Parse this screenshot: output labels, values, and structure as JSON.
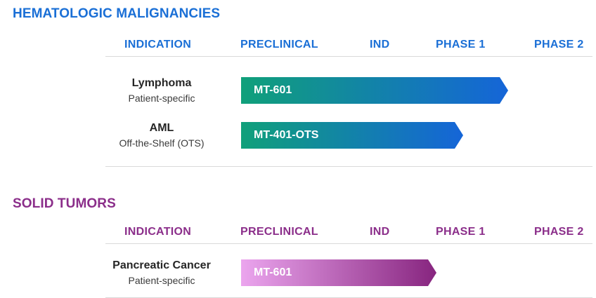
{
  "colors": {
    "heme_accent": "#1a6fd6",
    "solid_accent": "#8b2e8a",
    "heme_bar_start": "#10a07a",
    "heme_bar_end": "#1565d8",
    "solid_bar_start": "#eba5ee",
    "solid_bar_end": "#87257f"
  },
  "sections": [
    {
      "title": "HEMATOLOGIC MALIGNANCIES",
      "headers": [
        "INDICATION",
        "PRECLINICAL",
        "IND",
        "PHASE 1",
        "PHASE 2"
      ],
      "rows": [
        {
          "indication": "Lymphoma",
          "subtitle": "Patient-specific",
          "program": "MT-601",
          "progress_stage": "PHASE 1"
        },
        {
          "indication": "AML",
          "subtitle": "Off-the-Shelf (OTS)",
          "program": "MT-401-OTS",
          "progress_stage": "PHASE 1"
        }
      ]
    },
    {
      "title": "SOLID TUMORS",
      "headers": [
        "INDICATION",
        "PRECLINICAL",
        "IND",
        "PHASE 1",
        "PHASE 2"
      ],
      "rows": [
        {
          "indication": "Pancreatic Cancer",
          "subtitle": "Patient-specific",
          "program": "MT-601",
          "progress_stage": "IND"
        }
      ]
    }
  ]
}
